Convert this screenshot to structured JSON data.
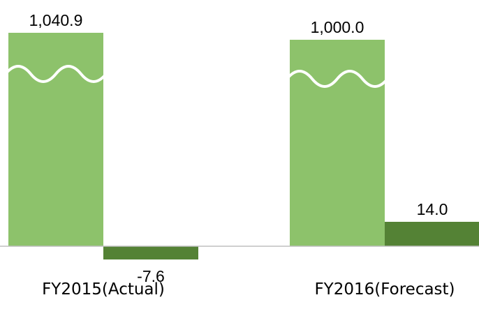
{
  "chart_data": {
    "type": "bar",
    "categories": [
      "FY2015(Actual)",
      "FY2016(Forecast)"
    ],
    "series": [
      {
        "values": [
          1040.9,
          1000.0
        ],
        "value_labels": [
          "1,040.9",
          "1,000.0"
        ],
        "color": "#8dc26b",
        "axis_break": true
      },
      {
        "values": [
          -7.6,
          14.0
        ],
        "value_labels": [
          "-7.6",
          "14.0"
        ],
        "color": "#548235"
      }
    ],
    "title": "",
    "xlabel": "",
    "ylabel": "",
    "grid": false,
    "legend": "none",
    "axis_line_color": "#bfbfbf",
    "break_line_color": "#ffffff"
  }
}
